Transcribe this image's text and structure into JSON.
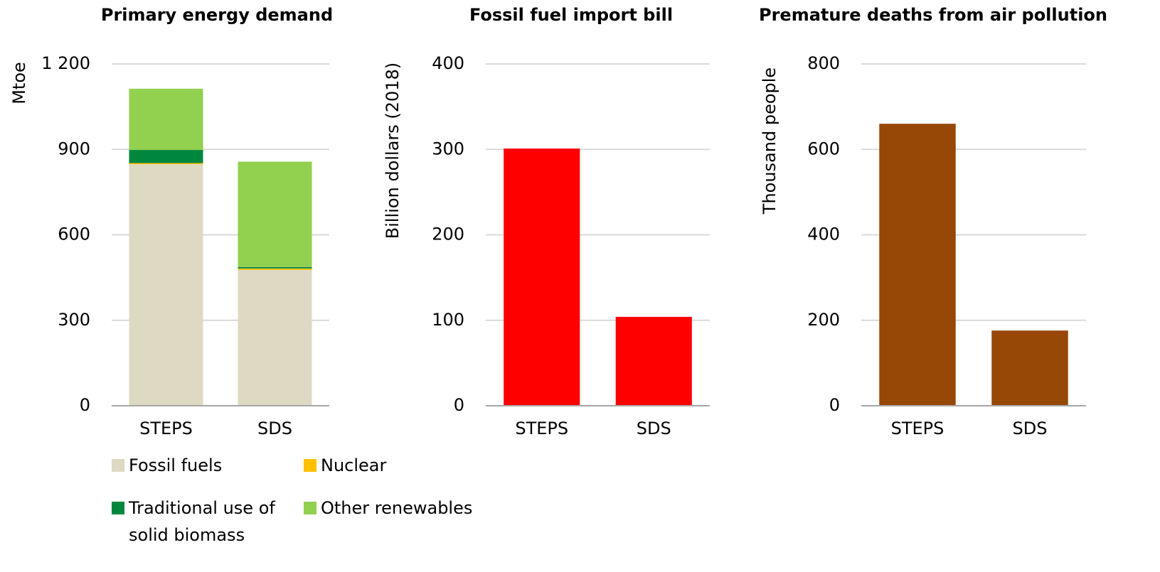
{
  "chart_data": [
    {
      "type": "bar",
      "stacked": true,
      "title": "Primary energy demand",
      "y_label": "Mtoe",
      "categories": [
        "STEPS",
        "SDS"
      ],
      "series": [
        {
          "name": "Fossil fuels",
          "color": "#ddd9c3",
          "values": [
            848,
            477
          ]
        },
        {
          "name": "Nuclear",
          "color": "#ffc000",
          "values": [
            4,
            5
          ]
        },
        {
          "name": "Traditional use of solid biomass",
          "color": "#00873e",
          "values": [
            46,
            5
          ]
        },
        {
          "name": "Other renewables",
          "color": "#92d050",
          "values": [
            215,
            370
          ]
        }
      ],
      "ylim": [
        0,
        1200
      ],
      "yticks": [
        0,
        300,
        600,
        900,
        {
          "value": 1200,
          "label": "1 200"
        }
      ],
      "grid": true,
      "legend": "bottom"
    },
    {
      "type": "bar",
      "title": "Fossil fuel import bill",
      "y_label": "Billion dollars (2018)",
      "categories": [
        "STEPS",
        "SDS"
      ],
      "values": [
        301,
        104
      ],
      "color": "#ff0000",
      "ylim": [
        0,
        400
      ],
      "yticks": [
        0,
        100,
        200,
        300,
        400
      ],
      "grid": true
    },
    {
      "type": "bar",
      "title": "Premature deaths from air pollution",
      "y_label": "Thousand people",
      "categories": [
        "STEPS",
        "SDS"
      ],
      "values": [
        660,
        176
      ],
      "color": "#974706",
      "ylim": [
        0,
        800
      ],
      "yticks": [
        0,
        200,
        400,
        600,
        800
      ],
      "grid": true
    }
  ]
}
